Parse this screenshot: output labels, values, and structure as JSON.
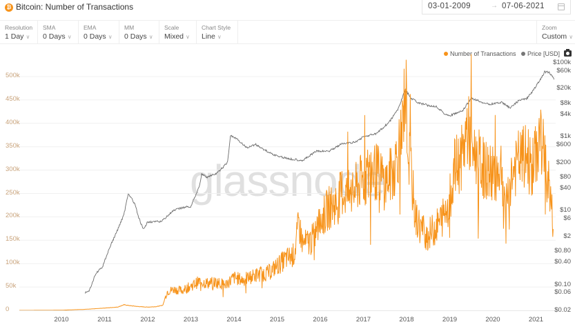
{
  "header": {
    "asset_icon": "bitcoin-icon",
    "title": "Bitcoin: Number of Transactions",
    "date_start": "03-01-2009",
    "date_arrow": "→",
    "date_end": "07-06-2021",
    "calendar_icon": "calendar-icon"
  },
  "toolbar": {
    "controls": [
      {
        "label": "Resolution",
        "value": "1 Day"
      },
      {
        "label": "SMA",
        "value": "0 Days"
      },
      {
        "label": "EMA",
        "value": "0 Days"
      },
      {
        "label": "MM",
        "value": "0 Days"
      },
      {
        "label": "Scale",
        "value": "Mixed"
      },
      {
        "label": "Chart Style",
        "value": "Line"
      }
    ],
    "zoom": {
      "label": "Zoom",
      "value": "Custom"
    },
    "chevron": "∨"
  },
  "legend": {
    "items": [
      {
        "label": "Number of Transactions",
        "color": "#f7931a"
      },
      {
        "label": "Price [USD]",
        "color": "#777777"
      }
    ],
    "screenshot_icon": "camera-icon"
  },
  "watermark": "glassnode",
  "colors": {
    "transactions": "#f7931a",
    "price": "#6b6b6b",
    "left_axis_text": "#c8a27a",
    "grid": "#f0f0f0"
  },
  "chart_data": {
    "type": "line",
    "title": "Bitcoin: Number of Transactions",
    "xlabel": "",
    "ylabel_left": "Number of Transactions",
    "ylabel_right": "Price [USD]",
    "x_ticks": [
      "2010",
      "2011",
      "2012",
      "2013",
      "2014",
      "2015",
      "2016",
      "2017",
      "2018",
      "2019",
      "2020",
      "2021"
    ],
    "y_left_ticks": [
      "0",
      "50k",
      "100k",
      "150k",
      "200k",
      "250k",
      "300k",
      "350k",
      "400k",
      "450k",
      "500k"
    ],
    "y_left_range": [
      0,
      500000
    ],
    "y_right_ticks": [
      "$100k",
      "$60k",
      "$20k",
      "$8k",
      "$4k",
      "$1k",
      "$600",
      "$200",
      "$80",
      "$40",
      "$10",
      "$6",
      "$2",
      "$0.80",
      "$0.40",
      "$0.10",
      "$0.06",
      "$0.02"
    ],
    "y_right_scale": "log",
    "grid": true,
    "legend_position": "top-right",
    "series": [
      {
        "name": "Number of Transactions",
        "axis": "left",
        "x": [
          2009.0,
          2009.5,
          2010.0,
          2010.3,
          2010.5,
          2010.7,
          2011.0,
          2011.3,
          2011.45,
          2011.6,
          2011.8,
          2012.0,
          2012.2,
          2012.35,
          2012.45,
          2012.6,
          2012.8,
          2013.0,
          2013.2,
          2013.4,
          2013.6,
          2013.8,
          2014.0,
          2014.2,
          2014.4,
          2014.6,
          2014.8,
          2015.0,
          2015.2,
          2015.4,
          2015.5,
          2015.6,
          2015.8,
          2016.0,
          2016.2,
          2016.4,
          2016.5,
          2016.7,
          2016.9,
          2017.0,
          2017.2,
          2017.4,
          2017.5,
          2017.7,
          2017.9,
          2017.97,
          2018.05,
          2018.1,
          2018.2,
          2018.3,
          2018.5,
          2018.7,
          2018.9,
          2019.0,
          2019.1,
          2019.3,
          2019.4,
          2019.5,
          2019.6,
          2019.7,
          2019.8,
          2020.0,
          2020.2,
          2020.25,
          2020.4,
          2020.6,
          2020.8,
          2020.9,
          2021.0,
          2021.1,
          2021.2,
          2021.3,
          2021.4
        ],
        "values": [
          0,
          100,
          300,
          1500,
          2000,
          3000,
          5000,
          7000,
          12000,
          10000,
          8000,
          7000,
          8000,
          11000,
          40000,
          45000,
          42000,
          52000,
          62000,
          58000,
          60000,
          55000,
          70000,
          65000,
          72000,
          78000,
          80000,
          95000,
          110000,
          120000,
          185000,
          140000,
          150000,
          190000,
          220000,
          230000,
          255000,
          245000,
          270000,
          280000,
          300000,
          290000,
          270000,
          300000,
          380000,
          490000,
          330000,
          300000,
          200000,
          180000,
          160000,
          180000,
          210000,
          240000,
          300000,
          330000,
          390000,
          360000,
          330000,
          320000,
          300000,
          290000,
          310000,
          210000,
          280000,
          320000,
          330000,
          300000,
          330000,
          380000,
          320000,
          270000,
          180000
        ]
      },
      {
        "name": "Price [USD]",
        "axis": "right",
        "x": [
          2010.55,
          2010.65,
          2010.8,
          2010.95,
          2011.1,
          2011.3,
          2011.45,
          2011.55,
          2011.7,
          2011.8,
          2011.9,
          2012.0,
          2012.3,
          2012.6,
          2012.8,
          2013.0,
          2013.2,
          2013.25,
          2013.35,
          2013.6,
          2013.85,
          2013.92,
          2014.1,
          2014.3,
          2014.5,
          2014.8,
          2015.0,
          2015.3,
          2015.6,
          2015.9,
          2016.2,
          2016.5,
          2016.8,
          2017.0,
          2017.3,
          2017.6,
          2017.8,
          2017.97,
          2018.1,
          2018.3,
          2018.5,
          2018.7,
          2018.9,
          2019.0,
          2019.3,
          2019.5,
          2019.7,
          2019.9,
          2020.2,
          2020.4,
          2020.6,
          2020.8,
          2020.95,
          2021.1,
          2021.2,
          2021.3,
          2021.42
        ],
        "values": [
          0.06,
          0.07,
          0.2,
          0.3,
          0.9,
          3,
          8,
          30,
          15,
          6,
          3,
          5,
          5,
          10,
          12,
          13,
          47,
          100,
          80,
          100,
          200,
          1100,
          800,
          500,
          620,
          380,
          300,
          250,
          230,
          400,
          410,
          640,
          700,
          1000,
          1200,
          2500,
          5500,
          19000,
          11000,
          8000,
          7000,
          6500,
          4000,
          3700,
          5000,
          11000,
          9000,
          7500,
          8500,
          6000,
          9500,
          11000,
          19000,
          35000,
          57000,
          55000,
          36000
        ]
      }
    ]
  }
}
